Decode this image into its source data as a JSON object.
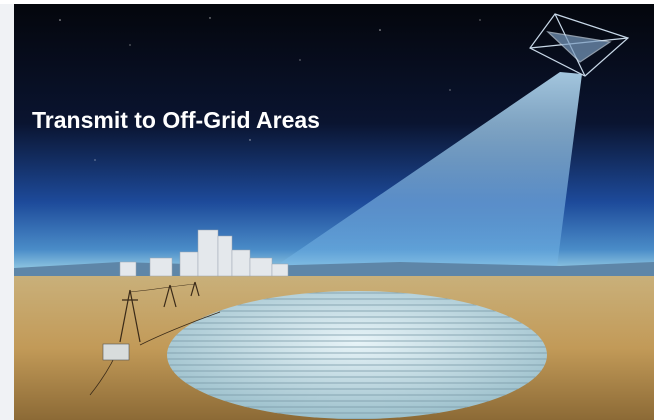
{
  "image": {
    "caption": "Transmit to Off-Grid Areas"
  }
}
